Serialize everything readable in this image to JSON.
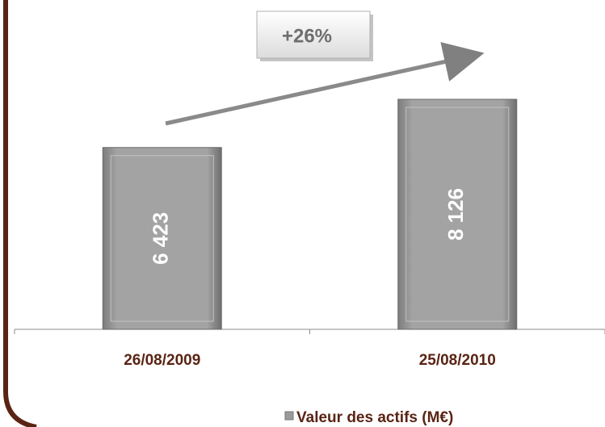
{
  "chart_data": {
    "type": "bar",
    "categories": [
      "26/08/2009",
      "25/08/2010"
    ],
    "series": [
      {
        "name": "Valeur des actifs  (M€)",
        "color": "#9a9a9a",
        "values": [
          6423,
          8126
        ],
        "value_labels": [
          "6 423",
          "8 126"
        ]
      }
    ],
    "annotation": "+26%"
  }
}
